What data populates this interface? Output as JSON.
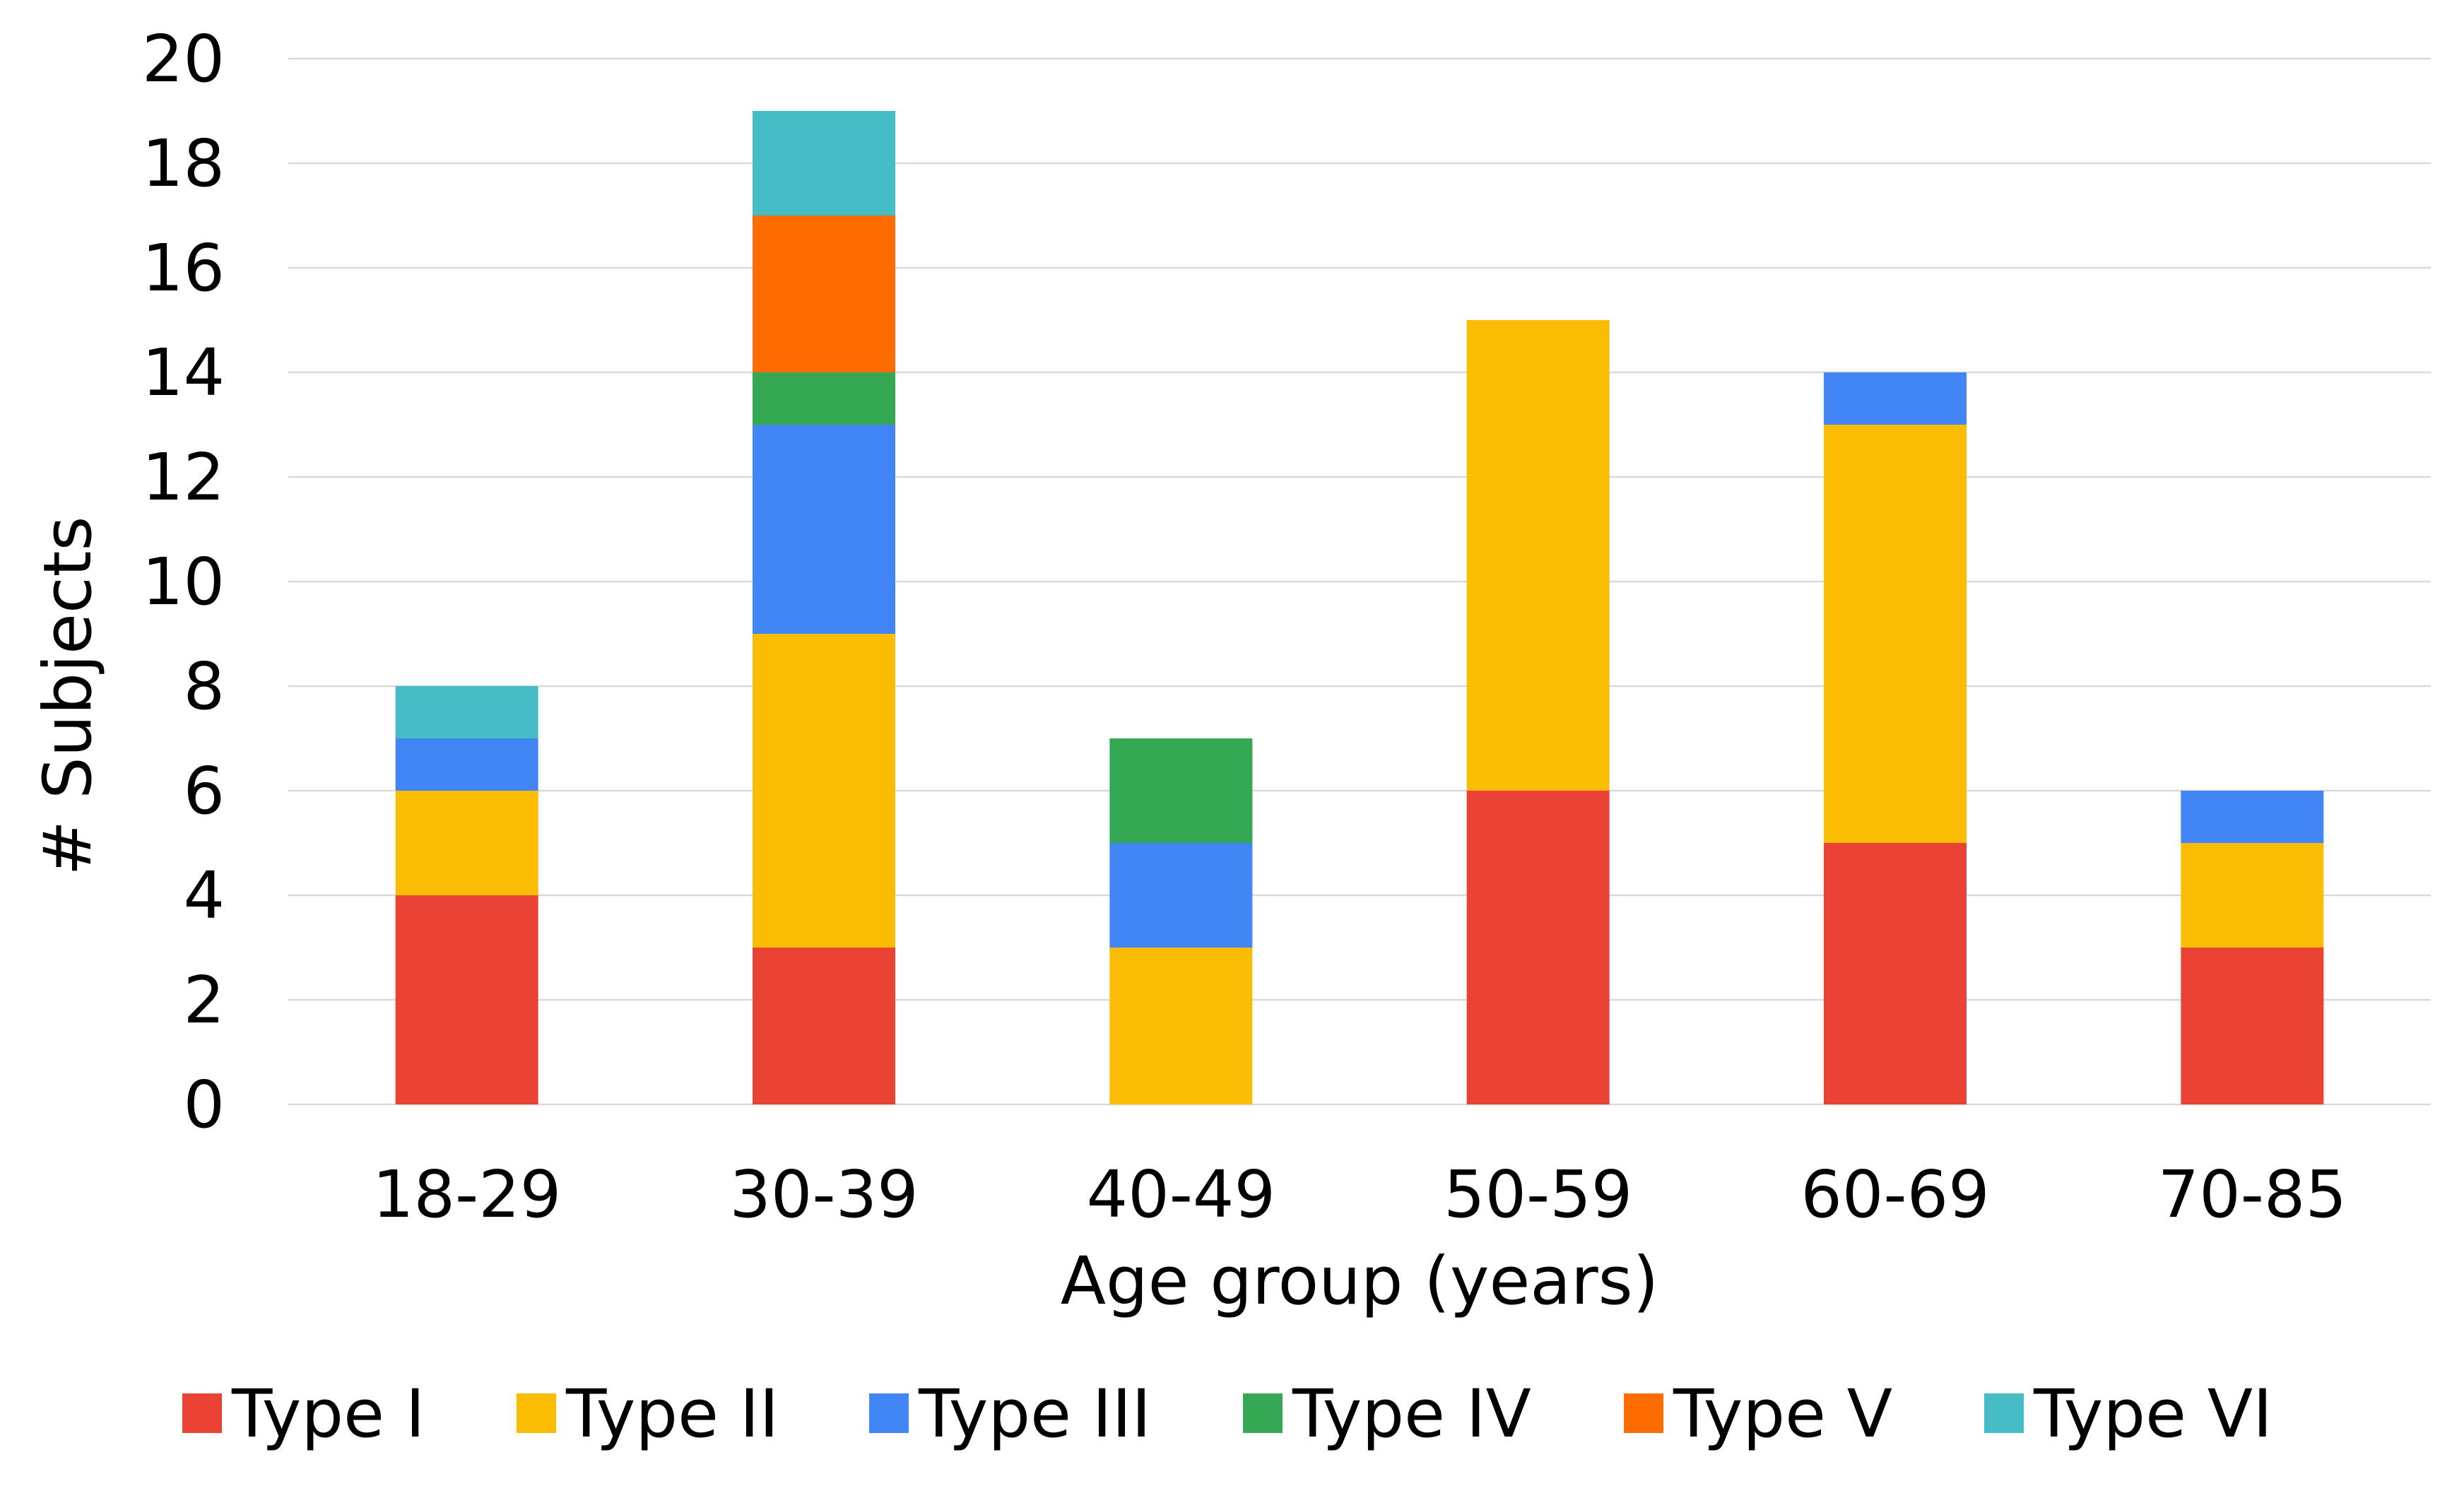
{
  "chart_data": {
    "type": "bar",
    "stacked": true,
    "categories": [
      "18-29",
      "30-39",
      "40-49",
      "50-59",
      "60-69",
      "70-85"
    ],
    "series": [
      {
        "name": "Type I",
        "color": "#EA4335",
        "values": [
          4,
          3,
          0,
          6,
          5,
          3
        ]
      },
      {
        "name": "Type II",
        "color": "#FBBC04",
        "values": [
          2,
          6,
          3,
          9,
          8,
          2
        ]
      },
      {
        "name": "Type III",
        "color": "#4285F4",
        "values": [
          1,
          4,
          2,
          0,
          1,
          1
        ]
      },
      {
        "name": "Type IV",
        "color": "#34A853",
        "values": [
          0,
          1,
          2,
          0,
          0,
          0
        ]
      },
      {
        "name": "Type V",
        "color": "#FF6D01",
        "values": [
          0,
          3,
          0,
          0,
          0,
          0
        ]
      },
      {
        "name": "Type VI",
        "color": "#46BDC6",
        "values": [
          1,
          2,
          0,
          0,
          0,
          0
        ]
      }
    ],
    "title": "",
    "xlabel": "Age group (years)",
    "ylabel": "# Subjects",
    "ylim": [
      0,
      20
    ],
    "yticks": [
      "0",
      "2",
      "4",
      "6",
      "8",
      "10",
      "12",
      "14",
      "16",
      "18",
      "20"
    ],
    "grid": true,
    "gridlines_color": "#D9D9D9",
    "legend_position": "bottom"
  }
}
